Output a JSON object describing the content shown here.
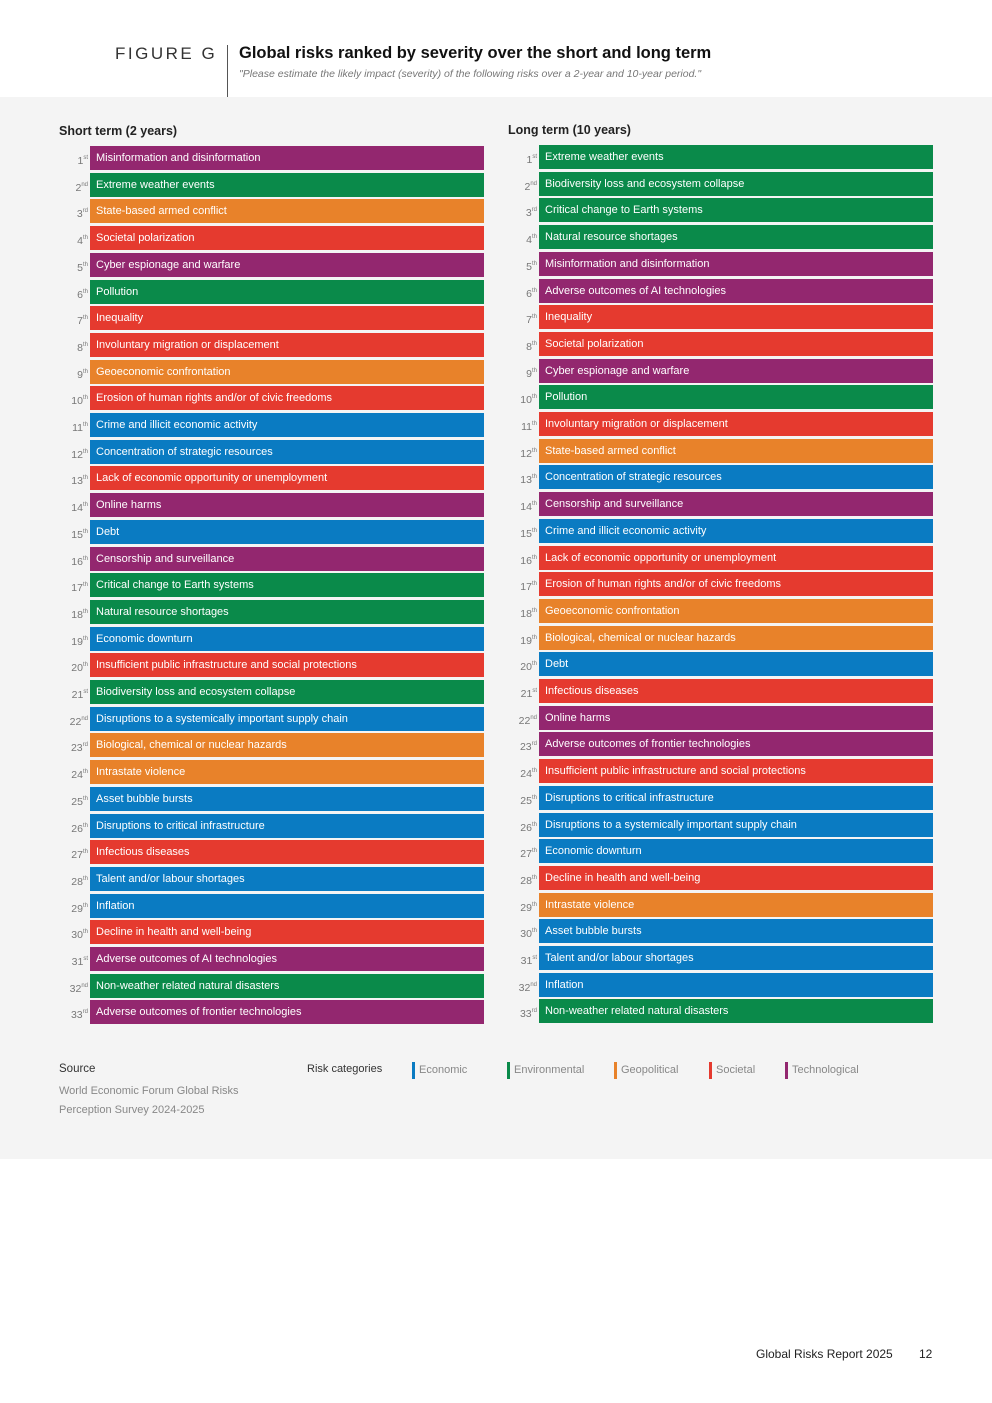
{
  "header": {
    "figure_label": "FIGURE G",
    "title": "Global risks ranked by severity over the short and long term",
    "subtitle": "\"Please estimate the likely impact (severity) of the following risks over a 2-year and 10-year period.\""
  },
  "colors": {
    "Economic": "#0a7bc2",
    "Environmental": "#0a8a4a",
    "Geopolitical": "#e8822a",
    "Societal": "#e53a2f",
    "Technological": "#93276f"
  },
  "short_term": {
    "title": "Short term (2 years)",
    "items": [
      {
        "num": "1",
        "suf": "st",
        "label": "Misinformation and disinformation",
        "cat": "Technological"
      },
      {
        "num": "2",
        "suf": "nd",
        "label": "Extreme weather events",
        "cat": "Environmental"
      },
      {
        "num": "3",
        "suf": "rd",
        "label": "State-based armed conflict",
        "cat": "Geopolitical"
      },
      {
        "num": "4",
        "suf": "th",
        "label": "Societal polarization",
        "cat": "Societal"
      },
      {
        "num": "5",
        "suf": "th",
        "label": "Cyber espionage and warfare",
        "cat": "Technological"
      },
      {
        "num": "6",
        "suf": "th",
        "label": "Pollution",
        "cat": "Environmental"
      },
      {
        "num": "7",
        "suf": "th",
        "label": "Inequality",
        "cat": "Societal"
      },
      {
        "num": "8",
        "suf": "th",
        "label": "Involuntary migration or displacement",
        "cat": "Societal"
      },
      {
        "num": "9",
        "suf": "th",
        "label": "Geoeconomic confrontation",
        "cat": "Geopolitical"
      },
      {
        "num": "10",
        "suf": "th",
        "label": "Erosion of human rights and/or of civic freedoms",
        "cat": "Societal"
      },
      {
        "num": "11",
        "suf": "th",
        "label": "Crime and illicit economic activity",
        "cat": "Economic"
      },
      {
        "num": "12",
        "suf": "th",
        "label": "Concentration of strategic resources",
        "cat": "Economic"
      },
      {
        "num": "13",
        "suf": "th",
        "label": "Lack of economic opportunity or unemployment",
        "cat": "Societal"
      },
      {
        "num": "14",
        "suf": "th",
        "label": "Online harms",
        "cat": "Technological"
      },
      {
        "num": "15",
        "suf": "th",
        "label": "Debt",
        "cat": "Economic"
      },
      {
        "num": "16",
        "suf": "th",
        "label": "Censorship and surveillance",
        "cat": "Technological"
      },
      {
        "num": "17",
        "suf": "th",
        "label": "Critical change to Earth systems",
        "cat": "Environmental"
      },
      {
        "num": "18",
        "suf": "th",
        "label": "Natural resource shortages",
        "cat": "Environmental"
      },
      {
        "num": "19",
        "suf": "th",
        "label": "Economic downturn",
        "cat": "Economic"
      },
      {
        "num": "20",
        "suf": "th",
        "label": "Insufficient public infrastructure and social protections",
        "cat": "Societal"
      },
      {
        "num": "21",
        "suf": "st",
        "label": "Biodiversity loss and ecosystem collapse",
        "cat": "Environmental"
      },
      {
        "num": "22",
        "suf": "nd",
        "label": "Disruptions to a systemically important supply chain",
        "cat": "Economic"
      },
      {
        "num": "23",
        "suf": "rd",
        "label": "Biological, chemical or nuclear hazards",
        "cat": "Geopolitical"
      },
      {
        "num": "24",
        "suf": "th",
        "label": "Intrastate violence",
        "cat": "Geopolitical"
      },
      {
        "num": "25",
        "suf": "th",
        "label": "Asset bubble bursts",
        "cat": "Economic"
      },
      {
        "num": "26",
        "suf": "th",
        "label": "Disruptions to critical infrastructure",
        "cat": "Economic"
      },
      {
        "num": "27",
        "suf": "th",
        "label": "Infectious diseases",
        "cat": "Societal"
      },
      {
        "num": "28",
        "suf": "th",
        "label": "Talent and/or labour shortages",
        "cat": "Economic"
      },
      {
        "num": "29",
        "suf": "th",
        "label": "Inflation",
        "cat": "Economic"
      },
      {
        "num": "30",
        "suf": "th",
        "label": "Decline in health and well-being",
        "cat": "Societal"
      },
      {
        "num": "31",
        "suf": "st",
        "label": "Adverse outcomes of AI technologies",
        "cat": "Technological"
      },
      {
        "num": "32",
        "suf": "nd",
        "label": "Non-weather related natural disasters",
        "cat": "Environmental"
      },
      {
        "num": "33",
        "suf": "rd",
        "label": "Adverse outcomes of frontier technologies",
        "cat": "Technological"
      }
    ]
  },
  "long_term": {
    "title": "Long term (10 years)",
    "items": [
      {
        "num": "1",
        "suf": "st",
        "label": "Extreme weather events",
        "cat": "Environmental"
      },
      {
        "num": "2",
        "suf": "nd",
        "label": "Biodiversity loss and ecosystem collapse",
        "cat": "Environmental"
      },
      {
        "num": "3",
        "suf": "rd",
        "label": "Critical change to Earth systems",
        "cat": "Environmental"
      },
      {
        "num": "4",
        "suf": "th",
        "label": "Natural resource shortages",
        "cat": "Environmental"
      },
      {
        "num": "5",
        "suf": "th",
        "label": "Misinformation and disinformation",
        "cat": "Technological"
      },
      {
        "num": "6",
        "suf": "th",
        "label": "Adverse outcomes of AI technologies",
        "cat": "Technological"
      },
      {
        "num": "7",
        "suf": "th",
        "label": "Inequality",
        "cat": "Societal"
      },
      {
        "num": "8",
        "suf": "th",
        "label": "Societal polarization",
        "cat": "Societal"
      },
      {
        "num": "9",
        "suf": "th",
        "label": "Cyber espionage and warfare",
        "cat": "Technological"
      },
      {
        "num": "10",
        "suf": "th",
        "label": "Pollution",
        "cat": "Environmental"
      },
      {
        "num": "11",
        "suf": "th",
        "label": "Involuntary migration or displacement",
        "cat": "Societal"
      },
      {
        "num": "12",
        "suf": "th",
        "label": "State-based armed conflict",
        "cat": "Geopolitical"
      },
      {
        "num": "13",
        "suf": "th",
        "label": "Concentration of strategic resources",
        "cat": "Economic"
      },
      {
        "num": "14",
        "suf": "th",
        "label": "Censorship and surveillance",
        "cat": "Technological"
      },
      {
        "num": "15",
        "suf": "th",
        "label": "Crime and illicit economic activity",
        "cat": "Economic"
      },
      {
        "num": "16",
        "suf": "th",
        "label": "Lack of economic opportunity or unemployment",
        "cat": "Societal"
      },
      {
        "num": "17",
        "suf": "th",
        "label": "Erosion of human rights and/or of civic freedoms",
        "cat": "Societal"
      },
      {
        "num": "18",
        "suf": "th",
        "label": "Geoeconomic confrontation",
        "cat": "Geopolitical"
      },
      {
        "num": "19",
        "suf": "th",
        "label": "Biological, chemical or nuclear hazards",
        "cat": "Geopolitical"
      },
      {
        "num": "20",
        "suf": "th",
        "label": "Debt",
        "cat": "Economic"
      },
      {
        "num": "21",
        "suf": "st",
        "label": "Infectious diseases",
        "cat": "Societal"
      },
      {
        "num": "22",
        "suf": "nd",
        "label": "Online harms",
        "cat": "Technological"
      },
      {
        "num": "23",
        "suf": "rd",
        "label": "Adverse outcomes of frontier technologies",
        "cat": "Technological"
      },
      {
        "num": "24",
        "suf": "th",
        "label": "Insufficient public infrastructure and social protections",
        "cat": "Societal"
      },
      {
        "num": "25",
        "suf": "th",
        "label": "Disruptions to critical infrastructure",
        "cat": "Economic"
      },
      {
        "num": "26",
        "suf": "th",
        "label": "Disruptions to a systemically important supply chain",
        "cat": "Economic"
      },
      {
        "num": "27",
        "suf": "th",
        "label": "Economic downturn",
        "cat": "Economic"
      },
      {
        "num": "28",
        "suf": "th",
        "label": "Decline in health and well-being",
        "cat": "Societal"
      },
      {
        "num": "29",
        "suf": "th",
        "label": "Intrastate violence",
        "cat": "Geopolitical"
      },
      {
        "num": "30",
        "suf": "th",
        "label": "Asset bubble bursts",
        "cat": "Economic"
      },
      {
        "num": "31",
        "suf": "st",
        "label": "Talent and/or labour shortages",
        "cat": "Economic"
      },
      {
        "num": "32",
        "suf": "nd",
        "label": "Inflation",
        "cat": "Economic"
      },
      {
        "num": "33",
        "suf": "rd",
        "label": "Non-weather related natural disasters",
        "cat": "Environmental"
      }
    ]
  },
  "source": {
    "heading": "Source",
    "text": "World Economic Forum Global Risks Perception Survey 2024-2025"
  },
  "legend": {
    "heading": "Risk categories",
    "items": [
      "Economic",
      "Environmental",
      "Geopolitical",
      "Societal",
      "Technological"
    ]
  },
  "footer": {
    "report": "Global Risks Report 2025",
    "page": "12"
  }
}
